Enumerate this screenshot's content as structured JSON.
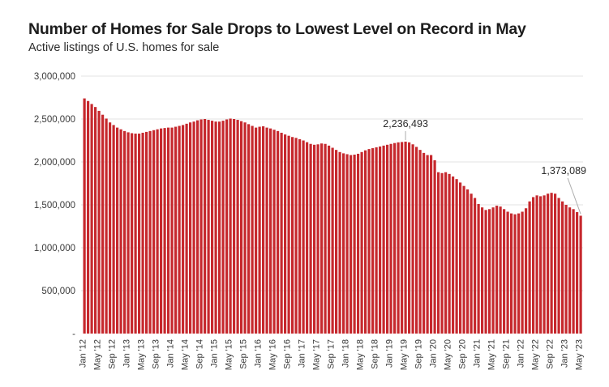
{
  "chart": {
    "title": "Number of Homes for Sale Drops to Lowest Level on Record in May",
    "subtitle": "Active listings of U.S. homes for sale"
  },
  "chart_data": {
    "type": "bar",
    "title": "Number of Homes for Sale Drops to Lowest Level on Record in May",
    "subtitle": "Active listings of U.S. homes for sale",
    "xlabel": "",
    "ylabel": "",
    "ylim": [
      0,
      3000000
    ],
    "grid": true,
    "bar_color": "#C6282D",
    "grid_color": "#E3E3E3",
    "axis_text_color": "#3A3A3A",
    "annotation_text_color": "#2A2A2A",
    "annotation_line_color": "#ADADAD",
    "y_ticks": [
      {
        "value": 3000000,
        "label": "3,000,000"
      },
      {
        "value": 2500000,
        "label": "2,500,000"
      },
      {
        "value": 2000000,
        "label": "2,000,000"
      },
      {
        "value": 1500000,
        "label": "1,500,000"
      },
      {
        "value": 1000000,
        "label": "1,000,000"
      },
      {
        "value": 500000,
        "label": "500,000"
      },
      {
        "value": 0,
        "label": "-"
      }
    ],
    "x_tick_every": 4,
    "categories": [
      "Jan '12",
      "Feb '12",
      "Mar '12",
      "Apr '12",
      "May '12",
      "Jun '12",
      "Jul '12",
      "Aug '12",
      "Sep '12",
      "Oct '12",
      "Nov '12",
      "Dec '12",
      "Jan '13",
      "Feb '13",
      "Mar '13",
      "Apr '13",
      "May '13",
      "Jun '13",
      "Jul '13",
      "Aug '13",
      "Sep '13",
      "Oct '13",
      "Nov '13",
      "Dec '13",
      "Jan '14",
      "Feb '14",
      "Mar '14",
      "Apr '14",
      "May '14",
      "Jun '14",
      "Jul '14",
      "Aug '14",
      "Sep '14",
      "Oct '14",
      "Nov '14",
      "Dec '14",
      "Jan '15",
      "Feb '15",
      "Mar '15",
      "Apr '15",
      "May '15",
      "Jun '15",
      "Jul '15",
      "Aug '15",
      "Sep '15",
      "Oct '15",
      "Nov '15",
      "Dec '15",
      "Jan '16",
      "Feb '16",
      "Mar '16",
      "Apr '16",
      "May '16",
      "Jun '16",
      "Jul '16",
      "Aug '16",
      "Sep '16",
      "Oct '16",
      "Nov '16",
      "Dec '16",
      "Jan '17",
      "Feb '17",
      "Mar '17",
      "Apr '17",
      "May '17",
      "Jun '17",
      "Jul '17",
      "Aug '17",
      "Sep '17",
      "Oct '17",
      "Nov '17",
      "Dec '17",
      "Jan '18",
      "Feb '18",
      "Mar '18",
      "Apr '18",
      "May '18",
      "Jun '18",
      "Jul '18",
      "Aug '18",
      "Sep '18",
      "Oct '18",
      "Nov '18",
      "Dec '18",
      "Jan '19",
      "Feb '19",
      "Mar '19",
      "Apr '19",
      "May '19",
      "Jun '19",
      "Jul '19",
      "Aug '19",
      "Sep '19",
      "Oct '19",
      "Nov '19",
      "Dec '19",
      "Jan '20",
      "Feb '20",
      "Mar '20",
      "Apr '20",
      "May '20",
      "Jun '20",
      "Jul '20",
      "Aug '20",
      "Sep '20",
      "Oct '20",
      "Nov '20",
      "Dec '20",
      "Jan '21",
      "Feb '21",
      "Mar '21",
      "Apr '21",
      "May '21",
      "Jun '21",
      "Jul '21",
      "Aug '21",
      "Sep '21",
      "Oct '21",
      "Nov '21",
      "Dec '21",
      "Jan '22",
      "Feb '22",
      "Mar '22",
      "Apr '22",
      "May '22",
      "Jun '22",
      "Jul '22",
      "Aug '22",
      "Sep '22",
      "Oct '22",
      "Nov '22",
      "Dec '22",
      "Jan '23",
      "Feb '23",
      "Mar '23",
      "Apr '23",
      "May '23"
    ],
    "values": [
      2740000,
      2710000,
      2675000,
      2640000,
      2595000,
      2550000,
      2505000,
      2460000,
      2430000,
      2400000,
      2380000,
      2360000,
      2345000,
      2335000,
      2330000,
      2330000,
      2340000,
      2350000,
      2360000,
      2370000,
      2380000,
      2390000,
      2395000,
      2400000,
      2400000,
      2410000,
      2420000,
      2430000,
      2445000,
      2460000,
      2470000,
      2485000,
      2495000,
      2500000,
      2490000,
      2480000,
      2470000,
      2470000,
      2480000,
      2495000,
      2505000,
      2500000,
      2490000,
      2475000,
      2460000,
      2440000,
      2420000,
      2400000,
      2410000,
      2415000,
      2400000,
      2390000,
      2375000,
      2360000,
      2340000,
      2320000,
      2305000,
      2290000,
      2280000,
      2265000,
      2250000,
      2230000,
      2210000,
      2200000,
      2205000,
      2215000,
      2210000,
      2190000,
      2165000,
      2140000,
      2115000,
      2100000,
      2090000,
      2080000,
      2085000,
      2095000,
      2115000,
      2135000,
      2150000,
      2160000,
      2170000,
      2180000,
      2190000,
      2200000,
      2210000,
      2220000,
      2228000,
      2232000,
      2236493,
      2228000,
      2205000,
      2175000,
      2140000,
      2105000,
      2080000,
      2080000,
      2020000,
      1880000,
      1870000,
      1880000,
      1860000,
      1830000,
      1800000,
      1760000,
      1720000,
      1680000,
      1630000,
      1580000,
      1510000,
      1470000,
      1440000,
      1450000,
      1470000,
      1490000,
      1480000,
      1450000,
      1420000,
      1400000,
      1390000,
      1400000,
      1420000,
      1460000,
      1540000,
      1590000,
      1610000,
      1600000,
      1610000,
      1630000,
      1640000,
      1630000,
      1580000,
      1540000,
      1500000,
      1470000,
      1450000,
      1415000,
      1373089
    ],
    "annotations": [
      {
        "index": 88,
        "label": "2,236,493",
        "style": "vertical"
      },
      {
        "index": 136,
        "label": "1,373,089",
        "style": "diagonal"
      }
    ]
  }
}
